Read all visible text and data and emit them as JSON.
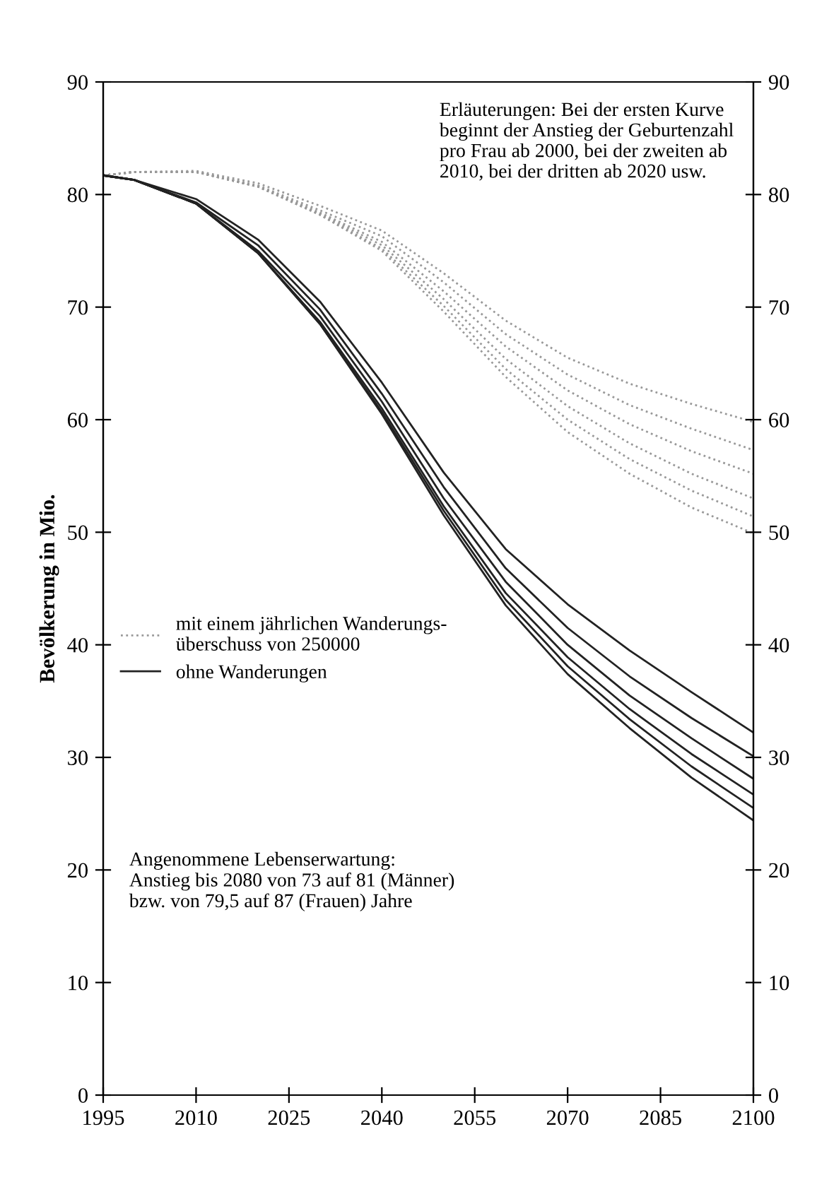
{
  "chart_data": {
    "type": "line",
    "ylabel": "Bevölkerung in Mio.",
    "x": [
      1995,
      2000,
      2010,
      2020,
      2030,
      2040,
      2050,
      2060,
      2070,
      2080,
      2090,
      2100
    ],
    "series": [
      {
        "name": "mit einem jährlichen Wanderungs-\nüberschuss von 250000",
        "color": "#999999",
        "line_style": "dotted",
        "values": [
          81.7,
          82.0,
          82.1,
          81.0,
          79.0,
          76.8,
          73.0,
          68.8,
          65.5,
          63.2,
          61.4,
          59.8
        ]
      },
      {
        "color": "#999999",
        "line_style": "dotted",
        "values": [
          81.7,
          82.0,
          82.0,
          80.8,
          78.6,
          76.3,
          72.2,
          67.6,
          64.0,
          61.3,
          59.2,
          57.3
        ]
      },
      {
        "color": "#999999",
        "line_style": "dotted",
        "values": [
          81.7,
          82.0,
          82.0,
          80.7,
          78.4,
          75.8,
          71.4,
          66.5,
          62.6,
          59.6,
          57.2,
          55.2
        ]
      },
      {
        "color": "#999999",
        "line_style": "dotted",
        "values": [
          81.7,
          82.0,
          82.0,
          80.7,
          78.3,
          75.5,
          70.7,
          65.4,
          61.2,
          57.9,
          55.2,
          53.0
        ]
      },
      {
        "color": "#999999",
        "line_style": "dotted",
        "values": [
          81.7,
          82.0,
          82.0,
          80.7,
          78.2,
          75.2,
          70.1,
          64.5,
          60.0,
          56.5,
          53.7,
          51.4
        ]
      },
      {
        "color": "#999999",
        "line_style": "dotted",
        "values": [
          81.7,
          82.0,
          82.0,
          80.7,
          78.2,
          75.0,
          69.6,
          63.8,
          58.9,
          55.2,
          52.2,
          49.9
        ]
      },
      {
        "name": "ohne Wanderungen",
        "color": "#222222",
        "line_style": "solid",
        "values": [
          81.7,
          81.3,
          79.6,
          76.0,
          70.5,
          63.3,
          55.3,
          48.5,
          43.6,
          39.5,
          35.8,
          32.2
        ]
      },
      {
        "color": "#222222",
        "line_style": "solid",
        "values": [
          81.7,
          81.3,
          79.3,
          75.5,
          69.8,
          62.3,
          54.0,
          46.8,
          41.5,
          37.2,
          33.5,
          30.1
        ]
      },
      {
        "color": "#222222",
        "line_style": "solid",
        "values": [
          81.7,
          81.3,
          79.2,
          75.0,
          69.2,
          61.6,
          53.0,
          45.6,
          40.0,
          35.5,
          31.7,
          28.1
        ]
      },
      {
        "color": "#222222",
        "line_style": "solid",
        "values": [
          81.7,
          81.3,
          79.2,
          74.8,
          68.7,
          61.0,
          52.3,
          44.6,
          38.9,
          34.3,
          30.3,
          26.7
        ]
      },
      {
        "color": "#222222",
        "line_style": "solid",
        "values": [
          81.7,
          81.3,
          79.2,
          74.8,
          68.5,
          60.7,
          51.9,
          44.0,
          38.1,
          33.4,
          29.2,
          25.5
        ]
      },
      {
        "color": "#222222",
        "line_style": "solid",
        "values": [
          81.7,
          81.3,
          79.2,
          74.8,
          68.5,
          60.5,
          51.5,
          43.5,
          37.4,
          32.6,
          28.2,
          24.4
        ]
      }
    ],
    "xlim": [
      1995,
      2100
    ],
    "xticks": [
      1995,
      2010,
      2025,
      2040,
      2055,
      2070,
      2085,
      2100
    ],
    "ylim": [
      0,
      90
    ],
    "yticks": [
      0,
      10,
      20,
      30,
      40,
      50,
      60,
      70,
      80,
      90
    ],
    "y2lim": [
      0,
      90
    ],
    "y2ticks": [
      0,
      10,
      20,
      30,
      40,
      50,
      60,
      70,
      80,
      90
    ],
    "legend": "center left",
    "grid": false,
    "annotations": [
      "Erläuterungen: Bei der ersten Kurve\nbeginnt der Anstieg der Geburtenzahl\npro Frau ab 2000, bei der zweiten ab\n2010, bei der dritten ab 2020 usw.",
      "Angenommene Lebenserwartung:\nAnstieg bis 2080 von 73 auf 81 (Männer)\nbzw. von 79,5 auf 87 (Frauen) Jahre"
    ]
  }
}
